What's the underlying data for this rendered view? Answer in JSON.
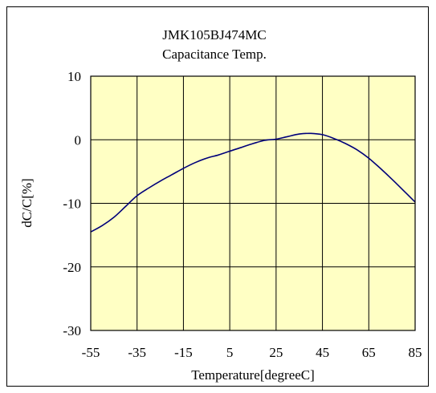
{
  "chart_data": {
    "type": "line",
    "title": "JMK105BJ474MC",
    "subtitle": "Capacitance Temp.",
    "xlabel": "Temperature[degreeC]",
    "ylabel": "dC/C[%]",
    "xlim": [
      -55,
      85
    ],
    "ylim": [
      -30,
      10
    ],
    "xticks": [
      -55,
      -35,
      -15,
      5,
      25,
      45,
      65,
      85
    ],
    "yticks": [
      10,
      0,
      -10,
      -20,
      -30
    ],
    "grid": true,
    "legend": "none",
    "colors": {
      "plot_background": "#FFFFC4",
      "line": "#00007A",
      "grid": "#000000"
    },
    "series": [
      {
        "x": [
          -55,
          -50,
          -45,
          -40,
          -35,
          -30,
          -25,
          -20,
          -15,
          -10,
          -5,
          0,
          5,
          10,
          15,
          20,
          25,
          30,
          35,
          40,
          45,
          50,
          55,
          60,
          65,
          70,
          75,
          80,
          85
        ],
        "values": [
          -14.5,
          -13.5,
          -12.2,
          -10.5,
          -8.8,
          -7.6,
          -6.5,
          -5.5,
          -4.5,
          -3.6,
          -2.9,
          -2.4,
          -1.8,
          -1.2,
          -0.6,
          -0.1,
          0.1,
          0.5,
          0.9,
          1.0,
          0.8,
          0.2,
          -0.6,
          -1.6,
          -2.9,
          -4.5,
          -6.2,
          -8.0,
          -9.8
        ]
      }
    ]
  }
}
